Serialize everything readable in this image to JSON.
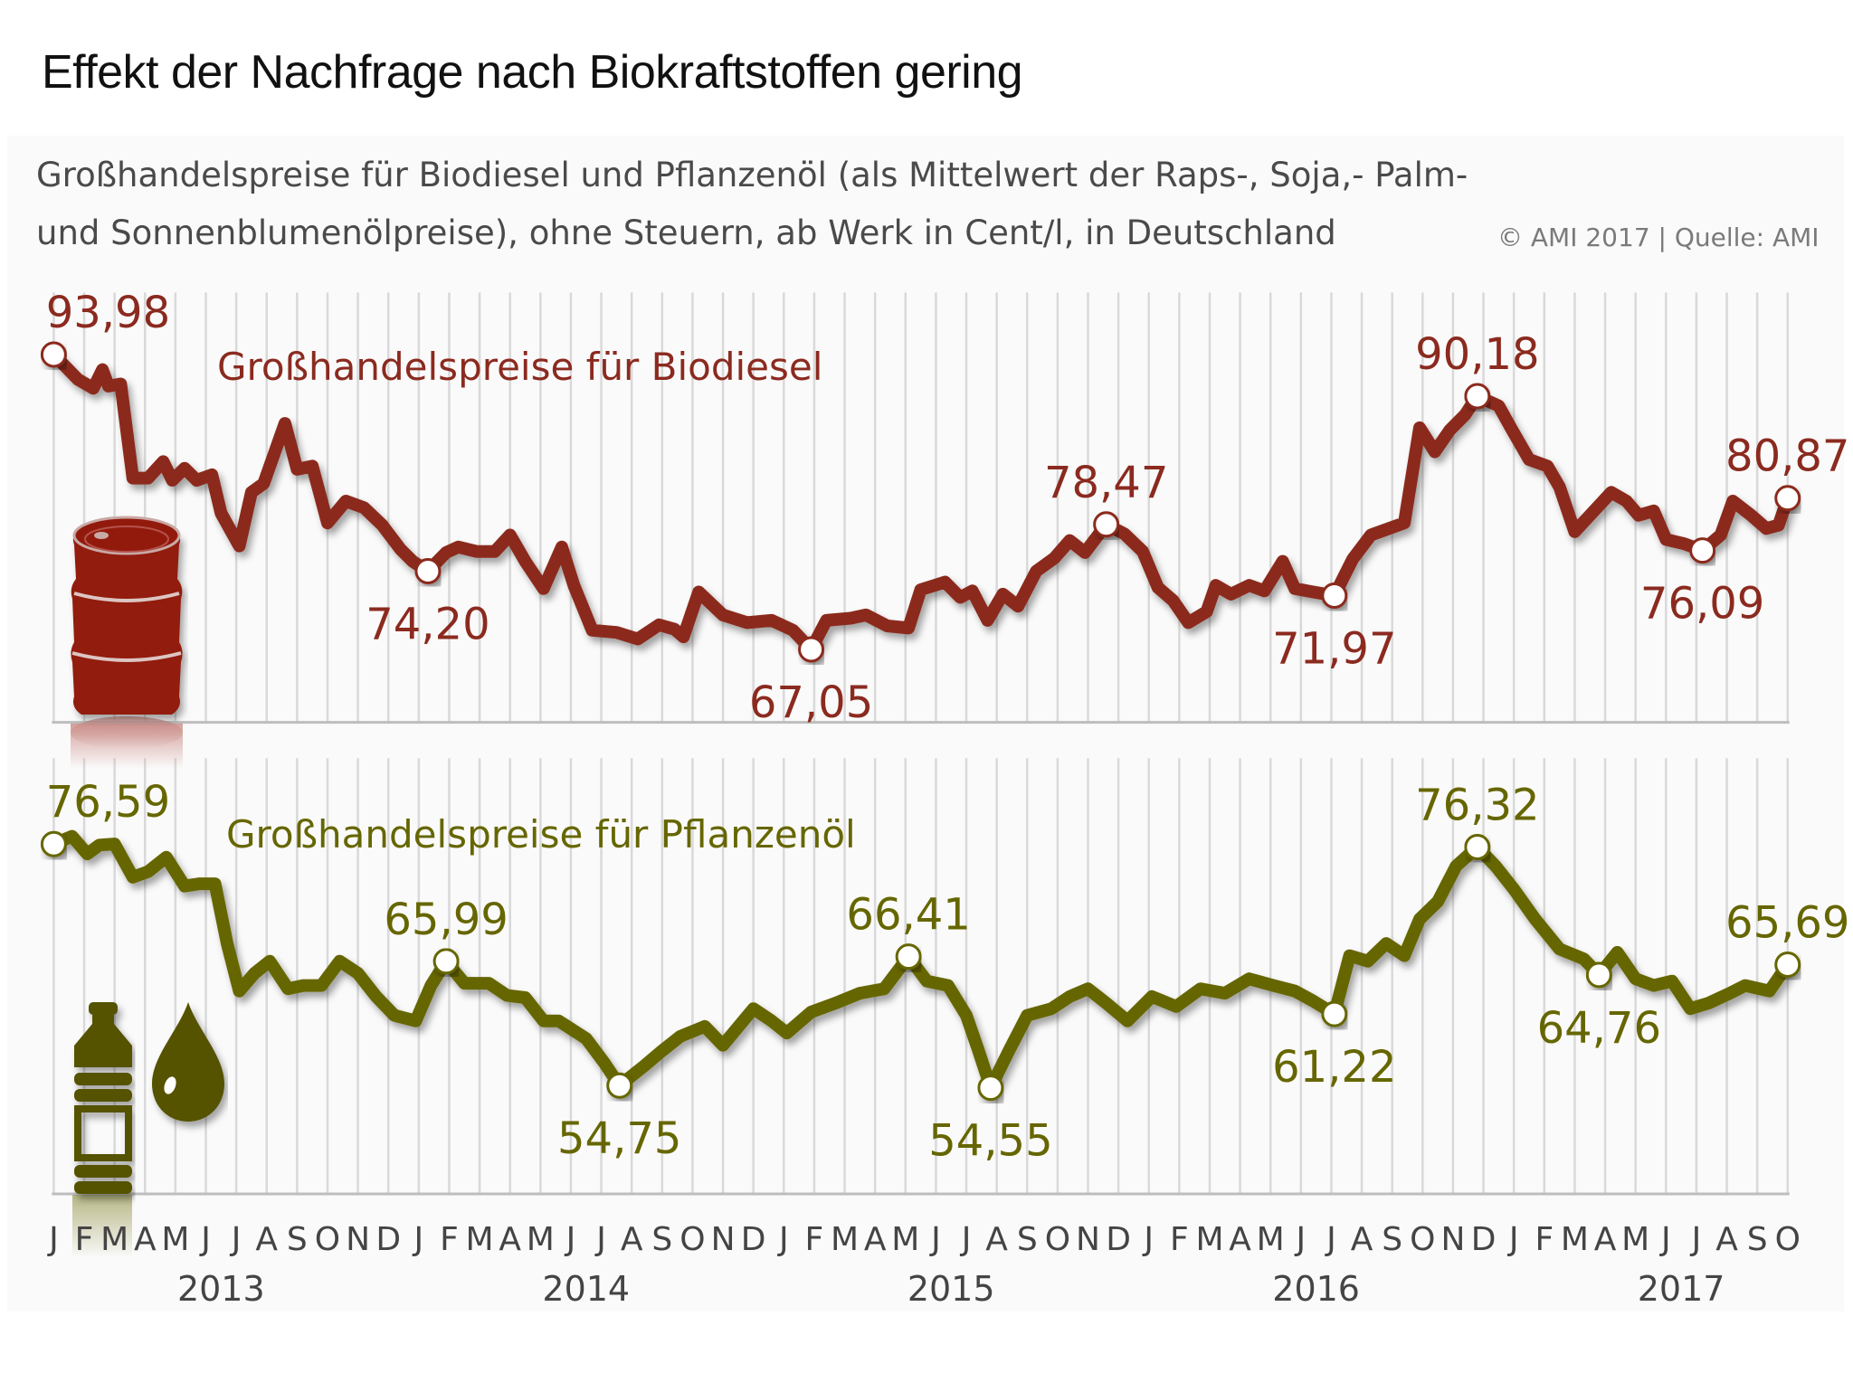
{
  "title": "Effekt der Nachfrage nach Biokraftstoffen gering",
  "subtitle_line1": "Großhandelspreise für Biodiesel und Pflanzenöl (als Mittelwert der Raps-, Soja,- Palm-",
  "subtitle_line2": "und Sonnenblumenölpreise), ohne Steuern, ab Werk in Cent/l, in Deutschland",
  "credit": "© AMI 2017 | Quelle: AMI",
  "colors": {
    "biodiesel": "#8b2a1f",
    "pflanzenoel": "#666600",
    "grid": "#d9d9d9",
    "axis_text": "#444444"
  },
  "icons": {
    "biodiesel": "oil-barrel-icon",
    "pflanzenoel": [
      "oil-bottle-icon",
      "oil-drop-icon"
    ]
  },
  "chart_data": [
    {
      "type": "line",
      "title": "Großhandelspreise für Biodiesel",
      "unit": "Cent/l",
      "x_unit": "months since Jan 2013",
      "ylim": [
        64,
        96
      ],
      "annotations": [
        {
          "x": 0,
          "value": 93.98,
          "label": "93,98",
          "pos": "above"
        },
        {
          "x": 12.3,
          "value": 74.2,
          "label": "74,20",
          "pos": "below"
        },
        {
          "x": 24.9,
          "value": 67.05,
          "label": "67,05",
          "pos": "below"
        },
        {
          "x": 34.6,
          "value": 78.47,
          "label": "78,47",
          "pos": "above"
        },
        {
          "x": 42.1,
          "value": 71.97,
          "label": "71,97",
          "pos": "below"
        },
        {
          "x": 46.8,
          "value": 90.18,
          "label": "90,18",
          "pos": "above"
        },
        {
          "x": 54.2,
          "value": 76.09,
          "label": "76,09",
          "pos": "below"
        },
        {
          "x": 57.0,
          "value": 80.87,
          "label": "80,87",
          "pos": "above"
        }
      ],
      "points": [
        [
          0,
          93.98
        ],
        [
          0.8,
          91.7
        ],
        [
          1.3,
          90.9
        ],
        [
          1.6,
          92.6
        ],
        [
          1.8,
          91.1
        ],
        [
          2.2,
          91.3
        ],
        [
          2.6,
          82.7
        ],
        [
          3.1,
          82.7
        ],
        [
          3.6,
          84.2
        ],
        [
          3.9,
          82.5
        ],
        [
          4.3,
          83.6
        ],
        [
          4.7,
          82.5
        ],
        [
          5.2,
          83.0
        ],
        [
          5.5,
          79.5
        ],
        [
          6.1,
          76.5
        ],
        [
          6.5,
          81.4
        ],
        [
          6.9,
          82.2
        ],
        [
          7.6,
          87.7
        ],
        [
          8.0,
          83.5
        ],
        [
          8.5,
          83.8
        ],
        [
          9.0,
          78.6
        ],
        [
          9.6,
          80.6
        ],
        [
          10.2,
          80.0
        ],
        [
          10.8,
          78.4
        ],
        [
          11.4,
          76.2
        ],
        [
          11.8,
          75.1
        ],
        [
          12.3,
          74.2
        ],
        [
          12.9,
          75.9
        ],
        [
          13.3,
          76.4
        ],
        [
          13.9,
          76.0
        ],
        [
          14.5,
          76.0
        ],
        [
          15.0,
          77.5
        ],
        [
          15.5,
          75.1
        ],
        [
          16.1,
          72.6
        ],
        [
          16.7,
          76.4
        ],
        [
          17.1,
          72.9
        ],
        [
          17.7,
          68.8
        ],
        [
          18.5,
          68.6
        ],
        [
          19.2,
          68.0
        ],
        [
          19.9,
          69.3
        ],
        [
          20.4,
          68.9
        ],
        [
          20.7,
          68.2
        ],
        [
          21.2,
          72.3
        ],
        [
          22.0,
          70.2
        ],
        [
          22.8,
          69.5
        ],
        [
          23.6,
          69.7
        ],
        [
          24.3,
          68.8
        ],
        [
          24.9,
          67.05
        ],
        [
          25.4,
          69.7
        ],
        [
          26.2,
          69.9
        ],
        [
          26.7,
          70.2
        ],
        [
          27.4,
          69.2
        ],
        [
          28.1,
          69.0
        ],
        [
          28.5,
          72.5
        ],
        [
          29.3,
          73.2
        ],
        [
          29.8,
          71.8
        ],
        [
          30.2,
          72.4
        ],
        [
          30.7,
          69.7
        ],
        [
          31.2,
          72.1
        ],
        [
          31.7,
          71.0
        ],
        [
          32.3,
          74.2
        ],
        [
          32.9,
          75.4
        ],
        [
          33.4,
          77.0
        ],
        [
          33.9,
          75.9
        ],
        [
          34.6,
          78.47
        ],
        [
          35.2,
          77.6
        ],
        [
          35.8,
          76.0
        ],
        [
          36.3,
          72.7
        ],
        [
          36.8,
          71.5
        ],
        [
          37.3,
          69.5
        ],
        [
          37.9,
          70.5
        ],
        [
          38.2,
          72.9
        ],
        [
          38.7,
          72.1
        ],
        [
          39.3,
          72.9
        ],
        [
          39.8,
          72.4
        ],
        [
          40.4,
          75.1
        ],
        [
          40.8,
          72.6
        ],
        [
          41.4,
          72.3
        ],
        [
          42.1,
          71.97
        ],
        [
          42.7,
          75.3
        ],
        [
          43.3,
          77.5
        ],
        [
          44.0,
          78.2
        ],
        [
          44.4,
          78.6
        ],
        [
          44.9,
          87.3
        ],
        [
          45.4,
          85.1
        ],
        [
          45.9,
          87.1
        ],
        [
          46.4,
          88.5
        ],
        [
          46.8,
          90.18
        ],
        [
          47.5,
          89.3
        ],
        [
          47.9,
          87.3
        ],
        [
          48.5,
          84.4
        ],
        [
          49.1,
          83.8
        ],
        [
          49.5,
          81.9
        ],
        [
          50.0,
          77.8
        ],
        [
          50.5,
          79.3
        ],
        [
          51.2,
          81.4
        ],
        [
          51.7,
          80.6
        ],
        [
          52.1,
          79.3
        ],
        [
          52.6,
          79.7
        ],
        [
          53.0,
          77.1
        ],
        [
          53.6,
          76.7
        ],
        [
          54.2,
          76.09
        ],
        [
          54.8,
          77.5
        ],
        [
          55.2,
          80.6
        ],
        [
          55.8,
          79.3
        ],
        [
          56.3,
          78.1
        ],
        [
          56.7,
          78.4
        ],
        [
          57.0,
          80.87
        ]
      ]
    },
    {
      "type": "line",
      "title": "Großhandelspreise für Pflanzenöl",
      "unit": "Cent/l",
      "x_unit": "months since Jan 2013",
      "ylim": [
        44,
        80
      ],
      "annotations": [
        {
          "x": 0,
          "value": 76.59,
          "label": "76,59",
          "pos": "above"
        },
        {
          "x": 12.9,
          "value": 65.99,
          "label": "65,99",
          "pos": "above"
        },
        {
          "x": 18.6,
          "value": 54.75,
          "label": "54,75",
          "pos": "below"
        },
        {
          "x": 28.1,
          "value": 66.41,
          "label": "66,41",
          "pos": "above"
        },
        {
          "x": 30.8,
          "value": 54.55,
          "label": "54,55",
          "pos": "below"
        },
        {
          "x": 42.1,
          "value": 61.22,
          "label": "61,22",
          "pos": "below"
        },
        {
          "x": 46.8,
          "value": 76.32,
          "label": "76,32",
          "pos": "above"
        },
        {
          "x": 50.8,
          "value": 64.76,
          "label": "64,76",
          "pos": "below"
        },
        {
          "x": 57.0,
          "value": 65.69,
          "label": "65,69",
          "pos": "above"
        }
      ],
      "points": [
        [
          0,
          76.59
        ],
        [
          0.6,
          77.3
        ],
        [
          1.1,
          75.7
        ],
        [
          1.5,
          76.5
        ],
        [
          2.0,
          76.6
        ],
        [
          2.6,
          73.6
        ],
        [
          3.1,
          74.1
        ],
        [
          3.7,
          75.4
        ],
        [
          4.3,
          72.8
        ],
        [
          4.8,
          73.0
        ],
        [
          5.3,
          73.0
        ],
        [
          5.7,
          67.6
        ],
        [
          6.1,
          63.3
        ],
        [
          6.6,
          64.9
        ],
        [
          7.1,
          66.0
        ],
        [
          7.7,
          63.5
        ],
        [
          8.2,
          63.8
        ],
        [
          8.8,
          63.8
        ],
        [
          9.4,
          66.0
        ],
        [
          10.0,
          64.9
        ],
        [
          10.6,
          62.8
        ],
        [
          11.2,
          61.1
        ],
        [
          11.9,
          60.6
        ],
        [
          12.4,
          63.8
        ],
        [
          12.9,
          65.99
        ],
        [
          13.5,
          64.0
        ],
        [
          14.3,
          64.0
        ],
        [
          14.9,
          62.9
        ],
        [
          15.5,
          62.7
        ],
        [
          16.1,
          60.6
        ],
        [
          16.6,
          60.6
        ],
        [
          17.5,
          59.0
        ],
        [
          18.1,
          56.8
        ],
        [
          18.6,
          54.75
        ],
        [
          19.4,
          56.5
        ],
        [
          20.0,
          57.9
        ],
        [
          20.6,
          59.2
        ],
        [
          21.4,
          60.1
        ],
        [
          22.0,
          58.4
        ],
        [
          23.0,
          61.7
        ],
        [
          23.6,
          60.6
        ],
        [
          24.1,
          59.5
        ],
        [
          24.9,
          61.4
        ],
        [
          25.7,
          62.2
        ],
        [
          26.5,
          63.1
        ],
        [
          27.3,
          63.5
        ],
        [
          28.1,
          66.41
        ],
        [
          28.7,
          64.2
        ],
        [
          29.4,
          63.8
        ],
        [
          30.0,
          61.1
        ],
        [
          30.4,
          57.9
        ],
        [
          30.8,
          54.55
        ],
        [
          31.4,
          57.9
        ],
        [
          32.0,
          61.1
        ],
        [
          32.8,
          61.7
        ],
        [
          33.4,
          62.8
        ],
        [
          34.0,
          63.5
        ],
        [
          34.6,
          62.2
        ],
        [
          35.3,
          60.6
        ],
        [
          36.1,
          62.8
        ],
        [
          36.9,
          61.9
        ],
        [
          37.7,
          63.5
        ],
        [
          38.5,
          63.1
        ],
        [
          39.3,
          64.4
        ],
        [
          40.1,
          63.8
        ],
        [
          40.8,
          63.3
        ],
        [
          41.4,
          62.4
        ],
        [
          42.1,
          61.22
        ],
        [
          42.6,
          66.5
        ],
        [
          43.2,
          66.0
        ],
        [
          43.8,
          67.6
        ],
        [
          44.4,
          66.5
        ],
        [
          44.9,
          69.8
        ],
        [
          45.5,
          71.4
        ],
        [
          46.1,
          74.6
        ],
        [
          46.8,
          76.32
        ],
        [
          47.4,
          74.6
        ],
        [
          48.0,
          72.5
        ],
        [
          48.7,
          69.8
        ],
        [
          49.5,
          67.1
        ],
        [
          50.3,
          66.2
        ],
        [
          50.8,
          64.76
        ],
        [
          51.4,
          66.8
        ],
        [
          52.0,
          64.4
        ],
        [
          52.6,
          63.8
        ],
        [
          53.2,
          64.2
        ],
        [
          53.8,
          61.7
        ],
        [
          54.4,
          62.2
        ],
        [
          55.1,
          63.1
        ],
        [
          55.6,
          63.8
        ],
        [
          56.4,
          63.3
        ],
        [
          57.0,
          65.69
        ]
      ]
    }
  ],
  "x_axis": {
    "month_labels": [
      "J",
      "F",
      "M",
      "A",
      "M",
      "J",
      "J",
      "A",
      "S",
      "O",
      "N",
      "D",
      "J",
      "F",
      "M",
      "A",
      "M",
      "J",
      "J",
      "A",
      "S",
      "O",
      "N",
      "D",
      "J",
      "F",
      "M",
      "A",
      "M",
      "J",
      "J",
      "A",
      "S",
      "O",
      "N",
      "D",
      "J",
      "F",
      "M",
      "A",
      "M",
      "J",
      "J",
      "A",
      "S",
      "O",
      "N",
      "D",
      "J",
      "F",
      "M",
      "A",
      "M",
      "J",
      "J",
      "A",
      "S",
      "O"
    ],
    "years": [
      {
        "label": "2013",
        "center_month": 5.5
      },
      {
        "label": "2014",
        "center_month": 17.5
      },
      {
        "label": "2015",
        "center_month": 29.5
      },
      {
        "label": "2016",
        "center_month": 41.5
      },
      {
        "label": "2017",
        "center_month": 53.5
      }
    ]
  }
}
